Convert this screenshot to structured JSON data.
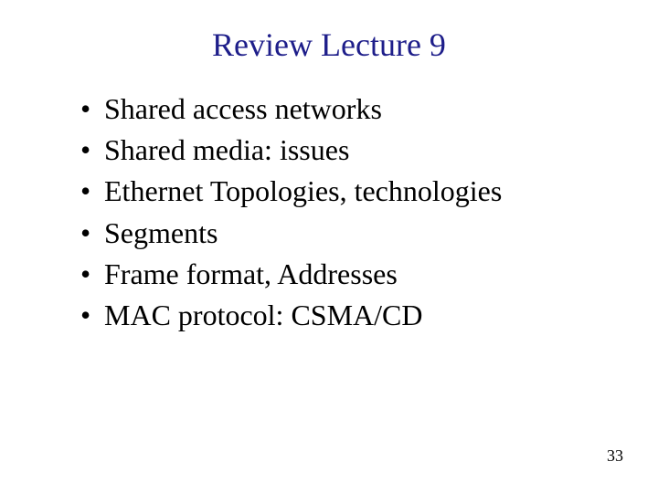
{
  "slide": {
    "title": "Review Lecture 9",
    "title_color": "#1e1e8a",
    "title_fontsize": 36,
    "bullets": [
      "Shared access networks",
      "Shared media: issues",
      "Ethernet Topologies, technologies",
      "Segments",
      "Frame format, Addresses",
      "MAC protocol: CSMA/CD"
    ],
    "bullet_color": "#000000",
    "bullet_fontsize": 32,
    "bullet_line_height": 1.35,
    "page_number": "33",
    "page_number_color": "#000000",
    "page_number_fontsize": 18,
    "background_color": "#ffffff"
  }
}
